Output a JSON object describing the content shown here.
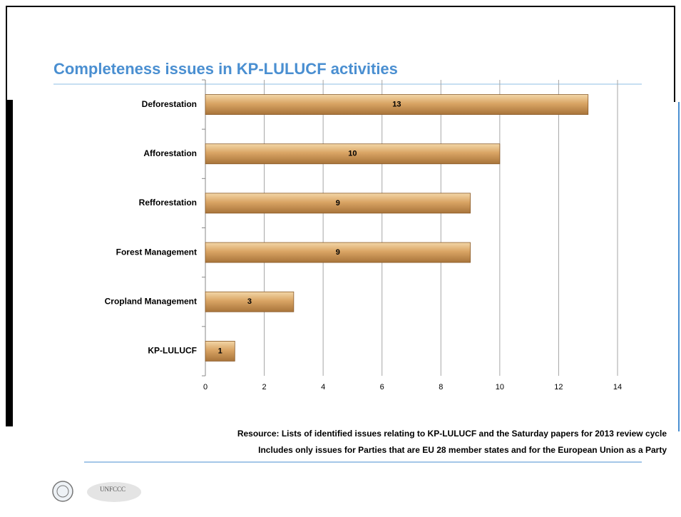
{
  "chart_data": {
    "type": "bar",
    "orientation": "horizontal",
    "title": "Completeness issues in KP-LULUCF activities",
    "categories": [
      "Deforestation",
      "Afforestation",
      "Refforestation",
      "Forest Management",
      "Cropland Management",
      "KP-LULUCF"
    ],
    "values": [
      13,
      10,
      9,
      9,
      3,
      1
    ],
    "color": "#d9a464",
    "xlim": [
      0,
      14
    ],
    "xticks": [
      0,
      2,
      4,
      6,
      8,
      10,
      12,
      14
    ],
    "grid": true
  },
  "notes": [
    "Resource: Lists of identified issues relating to KP-LULUCF and the Saturday papers  for 2013 review cycle",
    "Includes only issues for Parties that are EU 28 member states and for the European Union as a Party"
  ],
  "logo_text": "UNFCCC"
}
